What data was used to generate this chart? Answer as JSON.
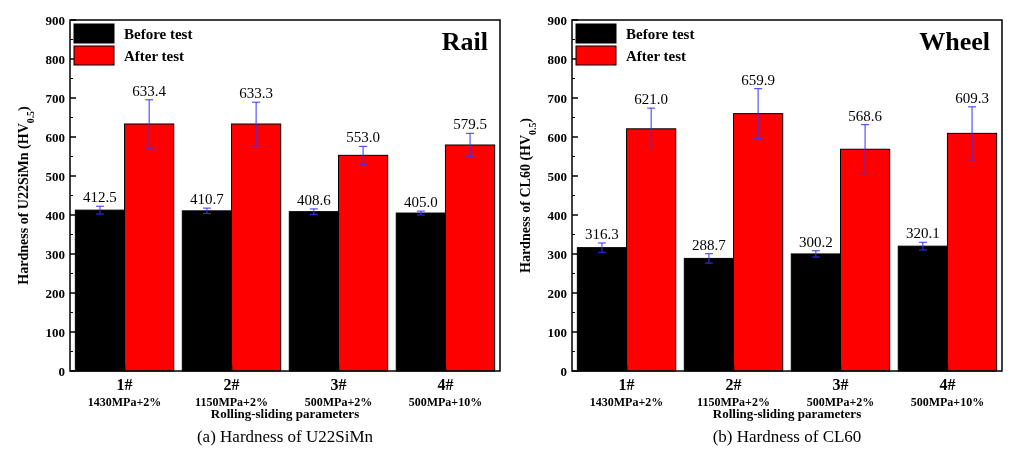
{
  "chart_data": [
    {
      "type": "bar",
      "title": "(a) Hardness of U22SiMn",
      "xlabel": "Rolling-sliding parameters",
      "ylabel": "Hardness of U22SiMn (HV$_{0.5}$)",
      "annotations": [
        "Rail"
      ],
      "categories": [
        "1#\n1430MPa+2%",
        "2#\n1150MPa+2%",
        "3#\n500MPa+2%",
        "4#\n500MPa+10%"
      ],
      "series": [
        {
          "name": "Before test",
          "color": "#000000",
          "values": [
            412.5,
            410.7,
            408.6,
            405.0
          ],
          "errors": [
            10,
            7,
            7,
            5
          ],
          "value_labels": [
            "412.5",
            "410.7",
            "408.6",
            "405.0"
          ]
        },
        {
          "name": "After test",
          "color": "#ff0000",
          "values": [
            633.4,
            633.3,
            553.0,
            579.5
          ],
          "errors": [
            62,
            56,
            23,
            30
          ],
          "value_labels": [
            "633.4",
            "633.3",
            "553.0",
            "579.5"
          ]
        }
      ],
      "ylim": [
        0,
        900
      ],
      "yticks": [
        0,
        100,
        200,
        300,
        400,
        500,
        600,
        700,
        800,
        900
      ],
      "legend": "top left",
      "grid": false
    },
    {
      "type": "bar",
      "title": "(b) Hardness of CL60",
      "xlabel": "Rolling-sliding parameters",
      "ylabel": "Hardness of CL60 (HV$_{0.5}$)",
      "annotations": [
        "Wheel"
      ],
      "categories": [
        "1#\n1430MPa+2%",
        "2#\n1150MPa+2%",
        "3#\n500MPa+2%",
        "4#\n500MPa+10%"
      ],
      "series": [
        {
          "name": "Before test",
          "color": "#000000",
          "values": [
            316.3,
            288.7,
            300.2,
            320.1
          ],
          "errors": [
            12,
            12,
            8,
            10
          ],
          "value_labels": [
            "316.3",
            "288.7",
            "300.2",
            "320.1"
          ]
        },
        {
          "name": "After test",
          "color": "#ff0000",
          "values": [
            621.0,
            659.9,
            568.6,
            609.3
          ],
          "errors": [
            53,
            64,
            63,
            68
          ],
          "value_labels": [
            "621.0",
            "659.9",
            "568.6",
            "609.3"
          ]
        }
      ],
      "ylim": [
        0,
        900
      ],
      "yticks": [
        0,
        100,
        200,
        300,
        400,
        500,
        600,
        700,
        800,
        900
      ],
      "legend": "top left",
      "grid": false
    }
  ]
}
